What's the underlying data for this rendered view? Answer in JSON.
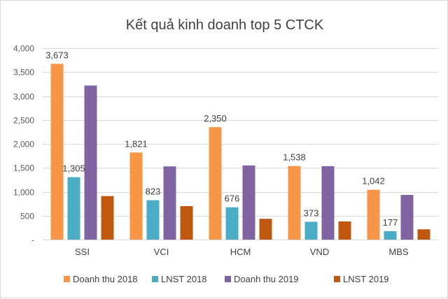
{
  "chart_data": {
    "type": "bar",
    "title": "Kết quả kinh doanh top 5 CTCK",
    "categories": [
      "SSI",
      "VCI",
      "HCM",
      "VND",
      "MBS"
    ],
    "ylim": [
      0,
      4000
    ],
    "yticks": [
      0,
      500,
      1000,
      1500,
      2000,
      2500,
      3000,
      3500,
      4000
    ],
    "ytick_labels": [
      "-",
      "500",
      "1,000",
      "1,500",
      "2,000",
      "2,500",
      "3,000",
      "3,500",
      "4,000"
    ],
    "grid": true,
    "legend_position": "bottom",
    "series": [
      {
        "name": "Doanh thu 2018",
        "color": "#f79646",
        "values": [
          3673,
          1821,
          2350,
          1538,
          1042
        ],
        "labels": [
          "3,673",
          "1,821",
          "2,350",
          "1,538",
          "1,042"
        ]
      },
      {
        "name": "LNST 2018",
        "color": "#4bacc6",
        "values": [
          1305,
          823,
          676,
          373,
          177
        ],
        "labels": [
          "1,305",
          "823",
          "676",
          "373",
          "177"
        ]
      },
      {
        "name": "Doanh thu 2019",
        "color": "#8064a2",
        "values": [
          3220,
          1530,
          1550,
          1535,
          935
        ],
        "labels": null
      },
      {
        "name": "LNST 2019",
        "color": "#c0580f",
        "values": [
          910,
          700,
          435,
          380,
          215
        ],
        "labels": null
      }
    ]
  }
}
